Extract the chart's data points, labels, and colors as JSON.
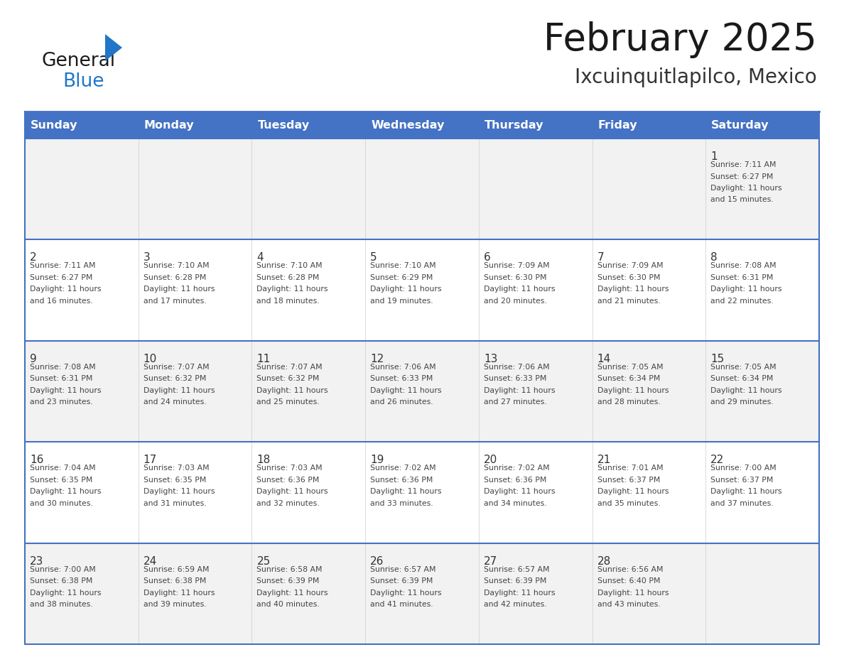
{
  "title": "February 2025",
  "subtitle": "Ixcuinquitlapilco, Mexico",
  "days_of_week": [
    "Sunday",
    "Monday",
    "Tuesday",
    "Wednesday",
    "Thursday",
    "Friday",
    "Saturday"
  ],
  "header_bg": "#4472C4",
  "header_text": "#FFFFFF",
  "cell_bg_row0": "#F2F2F2",
  "cell_bg_row1": "#FFFFFF",
  "cell_bg_row2": "#F2F2F2",
  "cell_bg_row3": "#FFFFFF",
  "cell_bg_row4": "#F2F2F2",
  "cell_border": "#4472C4",
  "title_color": "#1a1a1a",
  "subtitle_color": "#333333",
  "day_number_color": "#333333",
  "info_color": "#444444",
  "logo_general_color": "#1a1a1a",
  "logo_blue_color": "#2176C8",
  "calendar_data": [
    {
      "day": 1,
      "row": 0,
      "col": 6,
      "sunrise": "7:11 AM",
      "sunset": "6:27 PM",
      "daylight": "11 hours and 15 minutes."
    },
    {
      "day": 2,
      "row": 1,
      "col": 0,
      "sunrise": "7:11 AM",
      "sunset": "6:27 PM",
      "daylight": "11 hours and 16 minutes."
    },
    {
      "day": 3,
      "row": 1,
      "col": 1,
      "sunrise": "7:10 AM",
      "sunset": "6:28 PM",
      "daylight": "11 hours and 17 minutes."
    },
    {
      "day": 4,
      "row": 1,
      "col": 2,
      "sunrise": "7:10 AM",
      "sunset": "6:28 PM",
      "daylight": "11 hours and 18 minutes."
    },
    {
      "day": 5,
      "row": 1,
      "col": 3,
      "sunrise": "7:10 AM",
      "sunset": "6:29 PM",
      "daylight": "11 hours and 19 minutes."
    },
    {
      "day": 6,
      "row": 1,
      "col": 4,
      "sunrise": "7:09 AM",
      "sunset": "6:30 PM",
      "daylight": "11 hours and 20 minutes."
    },
    {
      "day": 7,
      "row": 1,
      "col": 5,
      "sunrise": "7:09 AM",
      "sunset": "6:30 PM",
      "daylight": "11 hours and 21 minutes."
    },
    {
      "day": 8,
      "row": 1,
      "col": 6,
      "sunrise": "7:08 AM",
      "sunset": "6:31 PM",
      "daylight": "11 hours and 22 minutes."
    },
    {
      "day": 9,
      "row": 2,
      "col": 0,
      "sunrise": "7:08 AM",
      "sunset": "6:31 PM",
      "daylight": "11 hours and 23 minutes."
    },
    {
      "day": 10,
      "row": 2,
      "col": 1,
      "sunrise": "7:07 AM",
      "sunset": "6:32 PM",
      "daylight": "11 hours and 24 minutes."
    },
    {
      "day": 11,
      "row": 2,
      "col": 2,
      "sunrise": "7:07 AM",
      "sunset": "6:32 PM",
      "daylight": "11 hours and 25 minutes."
    },
    {
      "day": 12,
      "row": 2,
      "col": 3,
      "sunrise": "7:06 AM",
      "sunset": "6:33 PM",
      "daylight": "11 hours and 26 minutes."
    },
    {
      "day": 13,
      "row": 2,
      "col": 4,
      "sunrise": "7:06 AM",
      "sunset": "6:33 PM",
      "daylight": "11 hours and 27 minutes."
    },
    {
      "day": 14,
      "row": 2,
      "col": 5,
      "sunrise": "7:05 AM",
      "sunset": "6:34 PM",
      "daylight": "11 hours and 28 minutes."
    },
    {
      "day": 15,
      "row": 2,
      "col": 6,
      "sunrise": "7:05 AM",
      "sunset": "6:34 PM",
      "daylight": "11 hours and 29 minutes."
    },
    {
      "day": 16,
      "row": 3,
      "col": 0,
      "sunrise": "7:04 AM",
      "sunset": "6:35 PM",
      "daylight": "11 hours and 30 minutes."
    },
    {
      "day": 17,
      "row": 3,
      "col": 1,
      "sunrise": "7:03 AM",
      "sunset": "6:35 PM",
      "daylight": "11 hours and 31 minutes."
    },
    {
      "day": 18,
      "row": 3,
      "col": 2,
      "sunrise": "7:03 AM",
      "sunset": "6:36 PM",
      "daylight": "11 hours and 32 minutes."
    },
    {
      "day": 19,
      "row": 3,
      "col": 3,
      "sunrise": "7:02 AM",
      "sunset": "6:36 PM",
      "daylight": "11 hours and 33 minutes."
    },
    {
      "day": 20,
      "row": 3,
      "col": 4,
      "sunrise": "7:02 AM",
      "sunset": "6:36 PM",
      "daylight": "11 hours and 34 minutes."
    },
    {
      "day": 21,
      "row": 3,
      "col": 5,
      "sunrise": "7:01 AM",
      "sunset": "6:37 PM",
      "daylight": "11 hours and 35 minutes."
    },
    {
      "day": 22,
      "row": 3,
      "col": 6,
      "sunrise": "7:00 AM",
      "sunset": "6:37 PM",
      "daylight": "11 hours and 37 minutes."
    },
    {
      "day": 23,
      "row": 4,
      "col": 0,
      "sunrise": "7:00 AM",
      "sunset": "6:38 PM",
      "daylight": "11 hours and 38 minutes."
    },
    {
      "day": 24,
      "row": 4,
      "col": 1,
      "sunrise": "6:59 AM",
      "sunset": "6:38 PM",
      "daylight": "11 hours and 39 minutes."
    },
    {
      "day": 25,
      "row": 4,
      "col": 2,
      "sunrise": "6:58 AM",
      "sunset": "6:39 PM",
      "daylight": "11 hours and 40 minutes."
    },
    {
      "day": 26,
      "row": 4,
      "col": 3,
      "sunrise": "6:57 AM",
      "sunset": "6:39 PM",
      "daylight": "11 hours and 41 minutes."
    },
    {
      "day": 27,
      "row": 4,
      "col": 4,
      "sunrise": "6:57 AM",
      "sunset": "6:39 PM",
      "daylight": "11 hours and 42 minutes."
    },
    {
      "day": 28,
      "row": 4,
      "col": 5,
      "sunrise": "6:56 AM",
      "sunset": "6:40 PM",
      "daylight": "11 hours and 43 minutes."
    }
  ]
}
